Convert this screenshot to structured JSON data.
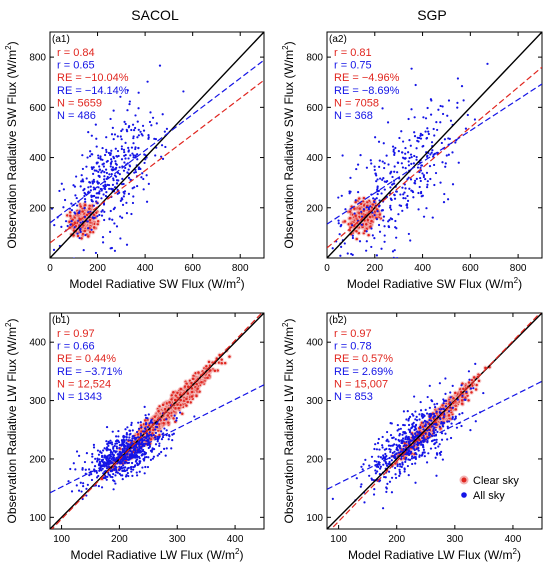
{
  "figure": {
    "column_titles": [
      "SACOL",
      "SGP"
    ],
    "legend": {
      "clear_sky": "Clear sky",
      "all_sky": "All sky"
    }
  },
  "colors": {
    "clear": "#e0261f",
    "clear_halo": "#f3b3b3",
    "all": "#1414e6",
    "one_to_one": "#000000"
  },
  "chart_data": [
    {
      "type": "scatter",
      "panel_label": "(a1)",
      "site": "SACOL",
      "xlabel": "Model Radiative SW Flux (W/m²)",
      "ylabel": "Observation Radiative SW Flux (W/m²)",
      "xlim": [
        0,
        900
      ],
      "ylim": [
        0,
        900
      ],
      "xticks": [
        0,
        200,
        400,
        600,
        800
      ],
      "yticks": [
        200,
        400,
        600,
        800
      ],
      "stats": {
        "clear": {
          "r": "0.84",
          "RE": "−10.04%",
          "N": "5659"
        },
        "all": {
          "r": "0.65",
          "RE": "−14.14%",
          "N": "486"
        }
      },
      "fit_lines": {
        "clear": {
          "intercept": 60,
          "slope": 0.72
        },
        "all": {
          "intercept": 140,
          "slope": 0.72
        }
      },
      "clusters": {
        "clear": {
          "n": 500,
          "cx": 140,
          "cy": 150,
          "sx": 22,
          "sy": 25,
          "corr": 0.3
        },
        "all": {
          "n": 420,
          "cx": 260,
          "cy": 320,
          "sx": 110,
          "sy": 140,
          "corr": 0.65
        }
      }
    },
    {
      "type": "scatter",
      "panel_label": "(a2)",
      "site": "SGP",
      "xlabel": "Model Radiative SW Flux (W/m²)",
      "ylabel": "Observation Radiative SW Flux (W/m²)",
      "xlim": [
        0,
        900
      ],
      "ylim": [
        0,
        900
      ],
      "xticks": [
        0,
        200,
        400,
        600,
        800
      ],
      "yticks": [
        200,
        400,
        600,
        800
      ],
      "stats": {
        "clear": {
          "r": "0.81",
          "RE": "−4.96%",
          "N": "7058"
        },
        "all": {
          "r": "0.75",
          "RE": "−8.69%",
          "N": "368"
        }
      },
      "fit_lines": {
        "clear": {
          "intercept": 40,
          "slope": 0.8
        },
        "all": {
          "intercept": 135,
          "slope": 0.62
        }
      },
      "clusters": {
        "clear": {
          "n": 500,
          "cx": 150,
          "cy": 165,
          "sx": 25,
          "sy": 25,
          "corr": 0.3
        },
        "all": {
          "n": 360,
          "cx": 300,
          "cy": 300,
          "sx": 140,
          "sy": 170,
          "corr": 0.7
        }
      }
    },
    {
      "type": "scatter",
      "panel_label": "(b1)",
      "site": "SACOL",
      "xlabel": "Model Radiative LW Flux (W/m²)",
      "ylabel": "Observation Radiative LW Flux (W/m²)",
      "xlim": [
        80,
        450
      ],
      "ylim": [
        80,
        450
      ],
      "xticks": [
        100,
        200,
        300,
        400
      ],
      "yticks": [
        100,
        200,
        300,
        400
      ],
      "stats": {
        "clear": {
          "r": "0.97",
          "RE": "0.44%",
          "N": "12,524"
        },
        "all": {
          "r": "0.66",
          "RE": "−3.71%",
          "N": "1343"
        }
      },
      "fit_lines": {
        "clear": {
          "intercept": -5,
          "slope": 1.02
        },
        "all": {
          "intercept": 102,
          "slope": 0.5
        }
      },
      "clusters": {
        "clear": {
          "n": 1100,
          "cx": 280,
          "cy": 277,
          "sx": 36,
          "sy": 36,
          "corr": 0.97
        },
        "all": {
          "n": 650,
          "cx": 210,
          "cy": 210,
          "sx": 35,
          "sy": 26,
          "corr": 0.66
        }
      }
    },
    {
      "type": "scatter",
      "panel_label": "(b2)",
      "site": "SGP",
      "xlabel": "Model Radiative LW Flux (W/m²)",
      "ylabel": "Observation Radiative LW Flux (W/m²)",
      "xlim": [
        80,
        450
      ],
      "ylim": [
        80,
        450
      ],
      "xticks": [
        100,
        200,
        300,
        400
      ],
      "yticks": [
        100,
        200,
        300,
        400
      ],
      "stats": {
        "clear": {
          "r": "0.97",
          "RE": "0.57%",
          "N": "15,007"
        },
        "all": {
          "r": "0.78",
          "RE": "2.69%",
          "N": "853"
        }
      },
      "fit_lines": {
        "clear": {
          "intercept": -10,
          "slope": 1.03
        },
        "all": {
          "intercept": 108,
          "slope": 0.5
        }
      },
      "clusters": {
        "clear": {
          "n": 800,
          "cx": 270,
          "cy": 268,
          "sx": 30,
          "sy": 30,
          "corr": 0.97
        },
        "all": {
          "n": 520,
          "cx": 225,
          "cy": 230,
          "sx": 42,
          "sy": 40,
          "corr": 0.78
        }
      }
    }
  ]
}
